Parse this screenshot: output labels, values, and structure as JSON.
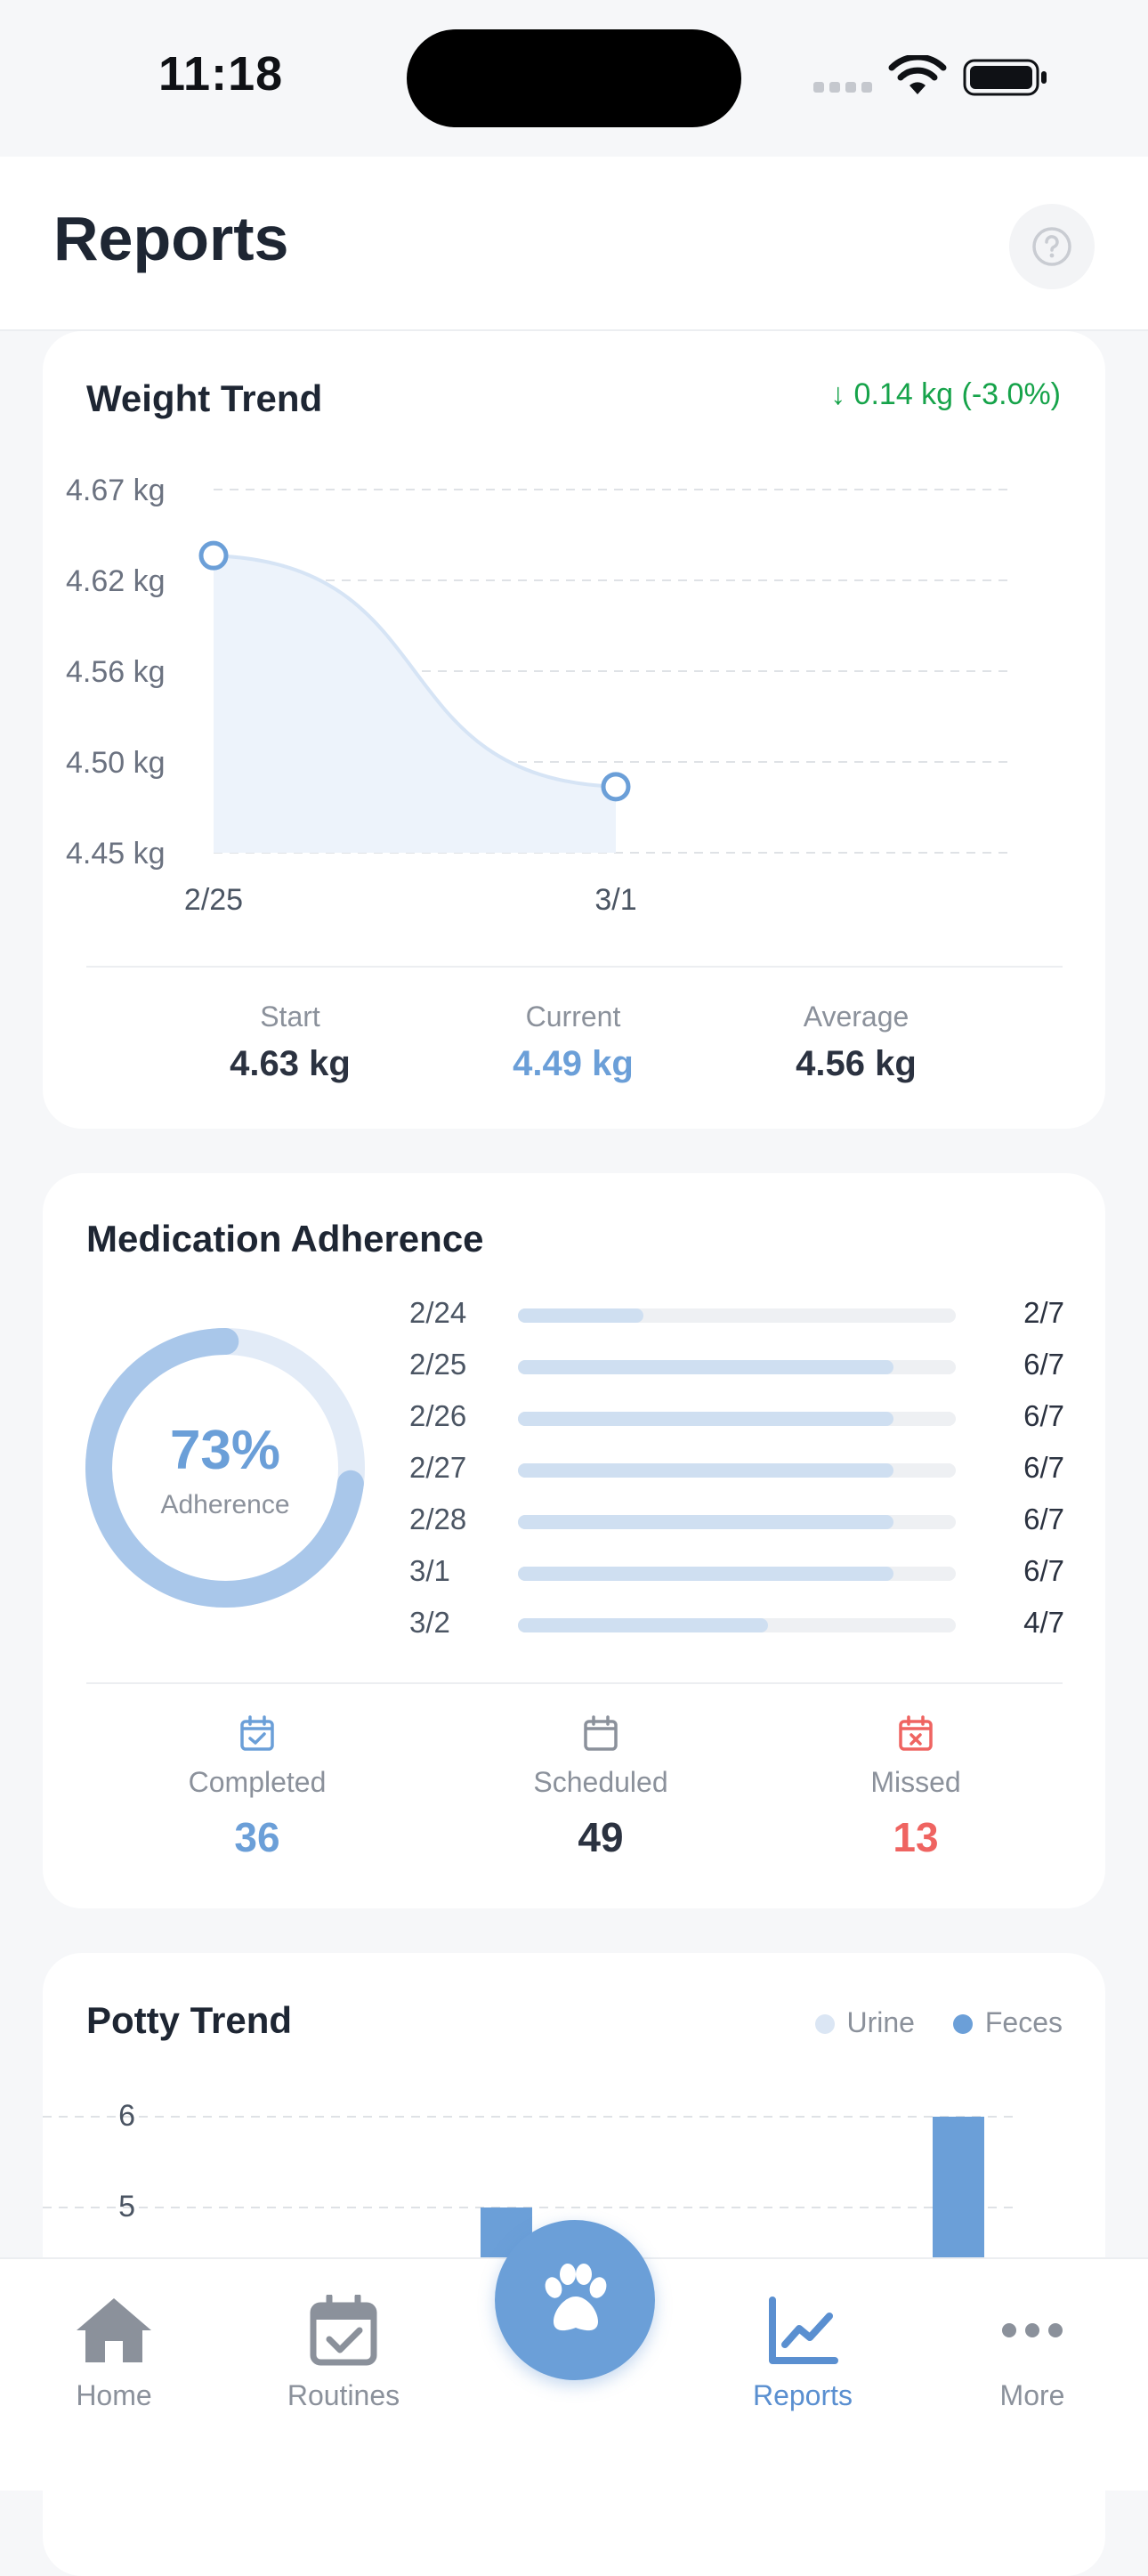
{
  "status_bar": {
    "time": "11:18"
  },
  "header": {
    "title": "Reports"
  },
  "weight_trend": {
    "title": "Weight Trend",
    "delta": "↓ 0.14 kg (-3.0%)",
    "stats": [
      {
        "label": "Start",
        "value": "4.63 kg"
      },
      {
        "label": "Current",
        "value": "4.49 kg"
      },
      {
        "label": "Average",
        "value": "4.56 kg"
      }
    ]
  },
  "medication": {
    "title": "Medication Adherence",
    "percent_text": "73%",
    "percent_label": "Adherence",
    "adherence_fraction": 0.73,
    "days": [
      {
        "date": "2/24",
        "count": "2/7",
        "ratio": 0.2857
      },
      {
        "date": "2/25",
        "count": "6/7",
        "ratio": 0.8571
      },
      {
        "date": "2/26",
        "count": "6/7",
        "ratio": 0.8571
      },
      {
        "date": "2/27",
        "count": "6/7",
        "ratio": 0.8571
      },
      {
        "date": "2/28",
        "count": "6/7",
        "ratio": 0.8571
      },
      {
        "date": "3/1",
        "count": "6/7",
        "ratio": 0.8571
      },
      {
        "date": "3/2",
        "count": "4/7",
        "ratio": 0.5714
      }
    ],
    "stats": {
      "completed": {
        "label": "Completed",
        "value": "36"
      },
      "scheduled": {
        "label": "Scheduled",
        "value": "49"
      },
      "missed": {
        "label": "Missed",
        "value": "13"
      }
    }
  },
  "potty": {
    "title": "Potty Trend",
    "legend": [
      {
        "name": "Urine",
        "color": "#dbe6f4"
      },
      {
        "name": "Feces",
        "color": "#6b9fd8"
      }
    ]
  },
  "tabbar": {
    "tabs": [
      {
        "label": "Home"
      },
      {
        "label": "Routines"
      },
      {
        "label": "Reports"
      },
      {
        "label": "More"
      }
    ]
  },
  "chart_data": [
    {
      "type": "area",
      "title": "Weight Trend",
      "x": [
        "2/25",
        "3/1"
      ],
      "values": [
        4.63,
        4.49
      ],
      "ytick_labels": [
        "4.67 kg",
        "4.62 kg",
        "4.56 kg",
        "4.50 kg",
        "4.45 kg"
      ],
      "ylim": [
        4.45,
        4.67
      ],
      "grid": true
    },
    {
      "type": "bar",
      "title": "Potty Trend",
      "ytick_labels": [
        "6",
        "5"
      ],
      "series": [
        {
          "name": "Feces",
          "values": [
            5,
            6
          ]
        }
      ],
      "legend": "top-right",
      "grid": true
    }
  ]
}
